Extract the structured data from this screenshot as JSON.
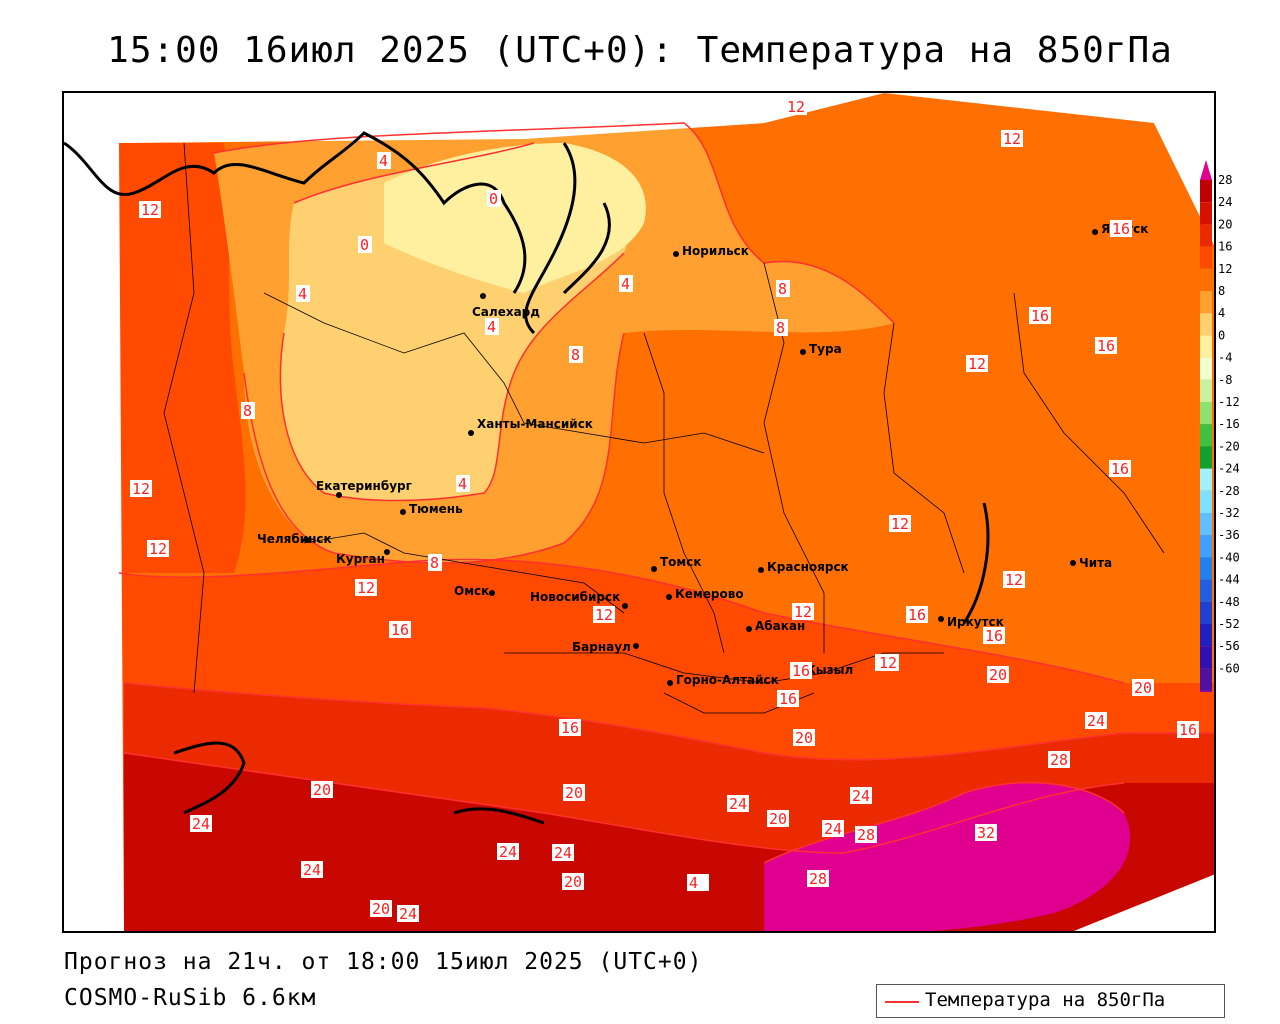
{
  "title": "15:00 16июл 2025 (UTC+0): Температура на 850гПа",
  "forecast_line": "Прогноз на 21ч. от 18:00 15июл 2025 (UTC+0)",
  "model_line": "COSMO-RuSib 6.6км",
  "legend_label": "Температура на 850гПа",
  "colorbar": {
    "labels": [
      "28",
      "24",
      "20",
      "16",
      "12",
      "8",
      "4",
      "0",
      "-4",
      "-8",
      "-12",
      "-16",
      "-20",
      "-24",
      "-28",
      "-32",
      "-36",
      "-40",
      "-44",
      "-48",
      "-52",
      "-56",
      "-60"
    ],
    "colors": [
      "#c00000",
      "#d81000",
      "#ec2a00",
      "#ff4a00",
      "#ff7000",
      "#ffa030",
      "#ffd070",
      "#fff0a0",
      "#f0ffd0",
      "#c8f0a0",
      "#90e070",
      "#40c040",
      "#10a030",
      "#a0f0ff",
      "#80e0ff",
      "#60c0ff",
      "#40a0ff",
      "#2080f0",
      "#2060e0",
      "#2040d0",
      "#2020c0",
      "#3010b0",
      "#5010a0"
    ],
    "top_color": "#e00090",
    "bottom_color": "#8000c0"
  },
  "cities": [
    {
      "name": "Норильск"
    },
    {
      "name": "Якутск"
    },
    {
      "name": "Салехард"
    },
    {
      "name": "Тура"
    },
    {
      "name": "Ханты-Мансийск"
    },
    {
      "name": "Екатеринбург"
    },
    {
      "name": "Тюмень"
    },
    {
      "name": "Челябинск"
    },
    {
      "name": "Курган"
    },
    {
      "name": "Омск"
    },
    {
      "name": "Новосибирск"
    },
    {
      "name": "Томск"
    },
    {
      "name": "Кемерово"
    },
    {
      "name": "Красноярск"
    },
    {
      "name": "Барнаул"
    },
    {
      "name": "Абакан"
    },
    {
      "name": "Горно-Алтайск"
    },
    {
      "name": "Кызыл"
    },
    {
      "name": "Иркутск"
    },
    {
      "name": "Чита"
    }
  ],
  "isotherm_labels": [
    {
      "value": "12"
    },
    {
      "value": "12"
    },
    {
      "value": "16"
    },
    {
      "value": "4"
    },
    {
      "value": "0"
    },
    {
      "value": "0"
    },
    {
      "value": "4"
    },
    {
      "value": "4"
    },
    {
      "value": "4"
    },
    {
      "value": "8"
    },
    {
      "value": "8"
    },
    {
      "value": "8"
    },
    {
      "value": "12"
    },
    {
      "value": "16"
    },
    {
      "value": "16"
    },
    {
      "value": "12"
    },
    {
      "value": "16"
    },
    {
      "value": "12"
    },
    {
      "value": "8"
    },
    {
      "value": "4"
    },
    {
      "value": "12"
    },
    {
      "value": "12"
    },
    {
      "value": "8"
    },
    {
      "value": "12"
    },
    {
      "value": "16"
    },
    {
      "value": "12"
    },
    {
      "value": "12"
    },
    {
      "value": "12"
    },
    {
      "value": "12"
    },
    {
      "value": "16"
    },
    {
      "value": "16"
    },
    {
      "value": "16"
    },
    {
      "value": "12"
    },
    {
      "value": "20"
    },
    {
      "value": "20"
    },
    {
      "value": "16"
    },
    {
      "value": "16"
    },
    {
      "value": "16"
    },
    {
      "value": "24"
    },
    {
      "value": "16"
    },
    {
      "value": "20"
    },
    {
      "value": "20"
    },
    {
      "value": "28"
    },
    {
      "value": "20"
    },
    {
      "value": "24"
    },
    {
      "value": "20"
    },
    {
      "value": "24"
    },
    {
      "value": "24"
    },
    {
      "value": "28"
    },
    {
      "value": "32"
    },
    {
      "value": "24"
    },
    {
      "value": "24"
    },
    {
      "value": "24"
    },
    {
      "value": "20"
    },
    {
      "value": "24"
    },
    {
      "value": "28"
    },
    {
      "value": "20"
    },
    {
      "value": "24"
    },
    {
      "value": "4"
    }
  ]
}
